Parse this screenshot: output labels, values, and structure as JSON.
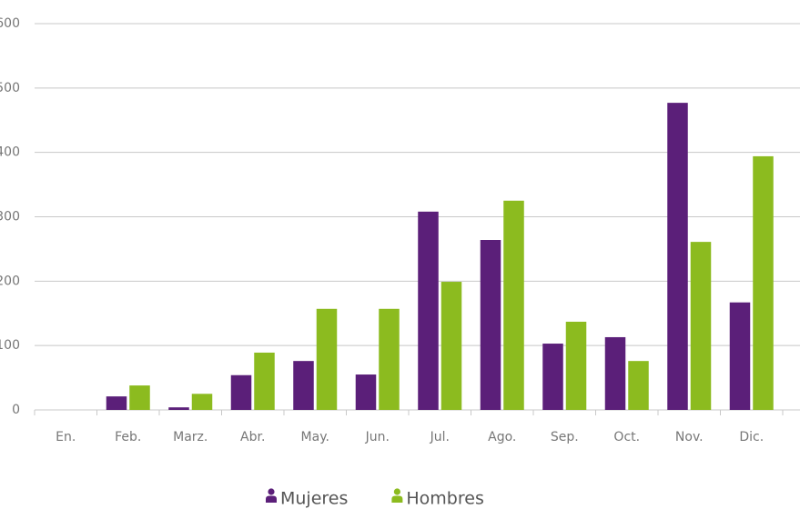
{
  "chart_data": {
    "type": "bar",
    "categories": [
      "En.",
      "Feb.",
      "Marz.",
      "Abr.",
      "May.",
      "Jun.",
      "Jul.",
      "Ago.",
      "Sep.",
      "Oct.",
      "Nov.",
      "Dic."
    ],
    "series": [
      {
        "name": "Mujeres",
        "color": "#5b1f79",
        "values": [
          0,
          21,
          4,
          54,
          76,
          55,
          308,
          264,
          103,
          113,
          477,
          167
        ]
      },
      {
        "name": "Hombres",
        "color": "#8cbb1f",
        "values": [
          0,
          38,
          25,
          89,
          157,
          157,
          199,
          325,
          137,
          76,
          261,
          394
        ]
      }
    ],
    "ylim": [
      0,
      600
    ],
    "yticks": [
      0,
      100,
      200,
      300,
      400,
      500,
      600
    ],
    "grid": true
  }
}
